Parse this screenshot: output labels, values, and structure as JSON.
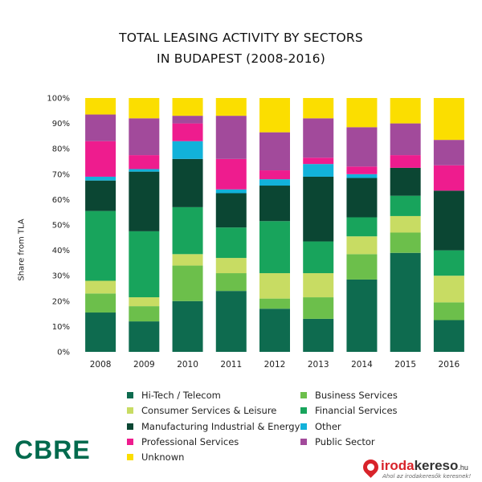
{
  "title_line1": "TOTAL LEASING ACTIVITY BY SECTORS",
  "title_line2": "IN BUDAPEST (2008-2016)",
  "chart_data": {
    "type": "bar",
    "stacked": true,
    "title": "TOTAL LEASING ACTIVITY BY SECTORS IN BUDAPEST (2008-2016)",
    "xlabel": "",
    "ylabel": "Share from TLA",
    "ylim": [
      0,
      100
    ],
    "yticks": [
      "0%",
      "10%",
      "20%",
      "30%",
      "40%",
      "50%",
      "60%",
      "70%",
      "80%",
      "90%",
      "100%"
    ],
    "grid": false,
    "legend_position": "bottom",
    "categories": [
      "2008",
      "2009",
      "2010",
      "2011",
      "2012",
      "2013",
      "2014",
      "2015",
      "2016"
    ],
    "series": [
      {
        "name": "Hi-Tech / Telecom",
        "color": "#0e6b4f",
        "values": [
          15.5,
          12,
          20,
          24,
          17,
          13,
          28.5,
          39,
          12.5
        ]
      },
      {
        "name": "Business Services",
        "color": "#6cbf4b",
        "values": [
          7.5,
          6,
          14,
          7,
          4,
          8.5,
          10,
          8,
          7
        ]
      },
      {
        "name": "Consumer Services & Leisure",
        "color": "#c8dc63",
        "values": [
          5,
          3.5,
          4.5,
          6,
          10,
          9.5,
          7,
          6.5,
          10.5
        ]
      },
      {
        "name": "Financial Services",
        "color": "#18a45c",
        "values": [
          27.5,
          26,
          18.5,
          12,
          20.5,
          12.5,
          7.5,
          8,
          10
        ]
      },
      {
        "name": "Manufacturing Industrial & Energy",
        "color": "#0b4633",
        "values": [
          12,
          23.5,
          19,
          13.5,
          14,
          25.5,
          15.5,
          11,
          23.5
        ]
      },
      {
        "name": "Other",
        "color": "#12b2da",
        "values": [
          1.5,
          1,
          7,
          1.5,
          2.5,
          5,
          1.5,
          0,
          0
        ]
      },
      {
        "name": "Professional Services",
        "color": "#ee1c8e",
        "values": [
          14,
          5.5,
          7,
          12,
          3.5,
          2.5,
          3,
          5,
          10
        ]
      },
      {
        "name": "Public Sector",
        "color": "#a24a9b",
        "values": [
          10.5,
          14.5,
          3,
          17,
          15,
          15.5,
          15.5,
          12.5,
          10
        ]
      },
      {
        "name": "Unknown",
        "color": "#fbde00",
        "values": [
          6.5,
          8,
          7,
          7,
          13.5,
          8,
          11.5,
          10,
          16.5
        ]
      }
    ]
  },
  "brand": {
    "cbre": "CBRE",
    "iroda_red": "iroda",
    "iroda_dark": "kereso",
    "iroda_tld": ".hu",
    "iroda_tagline": "Ahol az irodakeresők keresnek!"
  }
}
